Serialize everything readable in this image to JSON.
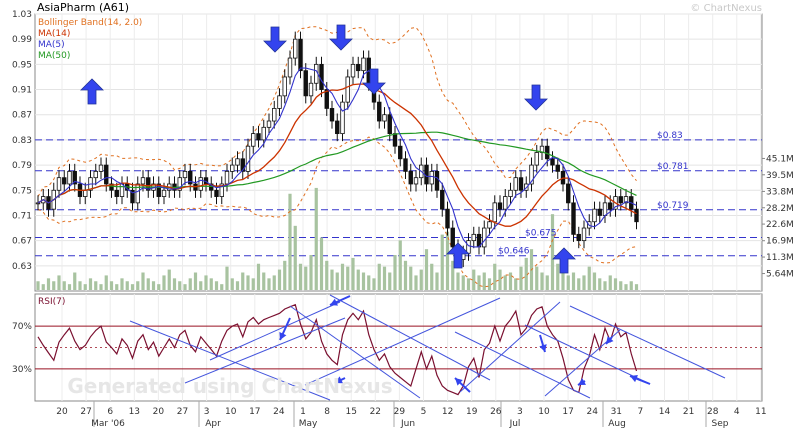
{
  "title": "AsiaPharm (A61)",
  "watermark": "© ChartNexus",
  "watermark_bottom": "Generated using ChartNexus",
  "legend": [
    {
      "label": "Bollinger Band(14, 2.0)",
      "color": "#e07020"
    },
    {
      "label": "MA(14)",
      "color": "#cc3300"
    },
    {
      "label": "MA(5)",
      "color": "#3333cc"
    },
    {
      "label": "MA(50)",
      "color": "#229922"
    }
  ],
  "rsi_label": "RSI(7)",
  "chart_data": [
    {
      "type": "candlestick",
      "name": "price",
      "ylim": [
        0.59,
        1.03
      ],
      "y_ticks": [
        "1.03",
        "0.99",
        "0.95",
        "0.91",
        "0.87",
        "0.83",
        "0.79",
        "0.75",
        "0.71",
        "0.67",
        "0.63"
      ],
      "y_tick_values": [
        1.03,
        0.99,
        0.95,
        0.91,
        0.87,
        0.83,
        0.79,
        0.75,
        0.71,
        0.67,
        0.63
      ],
      "close": [
        0.73,
        0.74,
        0.72,
        0.75,
        0.77,
        0.76,
        0.78,
        0.76,
        0.74,
        0.75,
        0.77,
        0.78,
        0.79,
        0.76,
        0.75,
        0.74,
        0.76,
        0.75,
        0.73,
        0.76,
        0.77,
        0.75,
        0.76,
        0.74,
        0.75,
        0.76,
        0.75,
        0.77,
        0.78,
        0.76,
        0.75,
        0.77,
        0.76,
        0.75,
        0.74,
        0.76,
        0.78,
        0.79,
        0.8,
        0.78,
        0.82,
        0.84,
        0.83,
        0.85,
        0.86,
        0.88,
        0.9,
        0.93,
        0.96,
        0.99,
        0.94,
        0.9,
        0.92,
        0.95,
        0.91,
        0.88,
        0.86,
        0.84,
        0.89,
        0.93,
        0.95,
        0.94,
        0.96,
        0.92,
        0.89,
        0.86,
        0.87,
        0.84,
        0.82,
        0.8,
        0.78,
        0.76,
        0.77,
        0.79,
        0.76,
        0.78,
        0.75,
        0.72,
        0.69,
        0.66,
        0.64,
        0.65,
        0.67,
        0.68,
        0.66,
        0.69,
        0.7,
        0.73,
        0.72,
        0.74,
        0.75,
        0.77,
        0.75,
        0.76,
        0.79,
        0.81,
        0.82,
        0.8,
        0.79,
        0.78,
        0.76,
        0.73,
        0.68,
        0.67,
        0.69,
        0.7,
        0.72,
        0.71,
        0.73,
        0.72,
        0.74,
        0.73,
        0.74,
        0.72,
        0.7
      ],
      "volume_ylim": [
        0,
        48
      ],
      "volume_ticks": [
        "45.1M",
        "39.5M",
        "33.8M",
        "28.2M",
        "22.6M",
        "16.9M",
        "11.3M",
        "5.64M"
      ],
      "volume_tick_values": [
        45.1,
        39.5,
        33.8,
        28.2,
        22.6,
        16.9,
        11.3,
        5.64
      ],
      "volume": [
        3,
        2,
        4,
        3,
        5,
        3,
        2,
        6,
        3,
        2,
        4,
        3,
        2,
        5,
        3,
        2,
        4,
        3,
        2,
        3,
        6,
        4,
        3,
        2,
        5,
        7,
        4,
        3,
        2,
        4,
        6,
        3,
        5,
        4,
        3,
        2,
        8,
        4,
        3,
        6,
        5,
        4,
        9,
        6,
        4,
        5,
        7,
        10,
        33,
        22,
        9,
        8,
        12,
        35,
        18,
        10,
        7,
        6,
        9,
        8,
        11,
        7,
        6,
        5,
        4,
        9,
        8,
        6,
        12,
        17,
        10,
        8,
        5,
        7,
        14,
        9,
        6,
        19,
        20,
        10,
        6,
        5,
        4,
        7,
        5,
        6,
        4,
        9,
        7,
        5,
        6,
        4,
        8,
        11,
        14,
        8,
        6,
        5,
        26,
        9,
        7,
        5,
        6,
        4,
        5,
        8,
        6,
        4,
        3,
        5,
        4,
        3,
        2,
        3,
        2
      ],
      "h_levels": [
        {
          "value": 0.83,
          "label": "$0.83"
        },
        {
          "value": 0.781,
          "label": "$0.781"
        },
        {
          "value": 0.719,
          "label": "$0.719"
        },
        {
          "value": 0.675,
          "label": "$0.675"
        },
        {
          "value": 0.646,
          "label": "$0.646"
        }
      ]
    },
    {
      "type": "line",
      "name": "RSI(7)",
      "ylim": [
        0,
        100
      ],
      "y_ticks": [
        "70%",
        "30%"
      ],
      "y_tick_values": [
        70,
        30
      ],
      "values": [
        60,
        52,
        45,
        38,
        55,
        62,
        68,
        56,
        48,
        52,
        60,
        66,
        70,
        55,
        50,
        44,
        58,
        52,
        40,
        56,
        62,
        48,
        55,
        42,
        50,
        58,
        50,
        62,
        66,
        52,
        46,
        60,
        54,
        48,
        42,
        56,
        66,
        70,
        72,
        60,
        74,
        78,
        72,
        76,
        78,
        80,
        82,
        86,
        88,
        90,
        72,
        58,
        64,
        76,
        56,
        44,
        38,
        34,
        62,
        76,
        82,
        76,
        84,
        62,
        48,
        38,
        44,
        32,
        26,
        22,
        18,
        14,
        30,
        46,
        30,
        42,
        24,
        14,
        10,
        8,
        6,
        14,
        32,
        40,
        22,
        48,
        54,
        70,
        56,
        70,
        76,
        84,
        62,
        68,
        80,
        86,
        88,
        70,
        62,
        56,
        40,
        20,
        10,
        8,
        30,
        42,
        62,
        48,
        68,
        56,
        72,
        60,
        64,
        44,
        28
      ],
      "x_ticks": [
        "20",
        "27",
        "6",
        "13",
        "20",
        "27",
        "3",
        "10",
        "17",
        "24",
        "1",
        "8",
        "15",
        "22",
        "29",
        "5",
        "12",
        "19",
        "26",
        "3",
        "10",
        "17",
        "24",
        "31",
        "7",
        "14",
        "21",
        "28",
        "4",
        "11"
      ],
      "month_labels": [
        "Mar '06",
        "Apr",
        "May",
        "Jun",
        "Jul",
        "Aug",
        "Sep"
      ]
    }
  ]
}
